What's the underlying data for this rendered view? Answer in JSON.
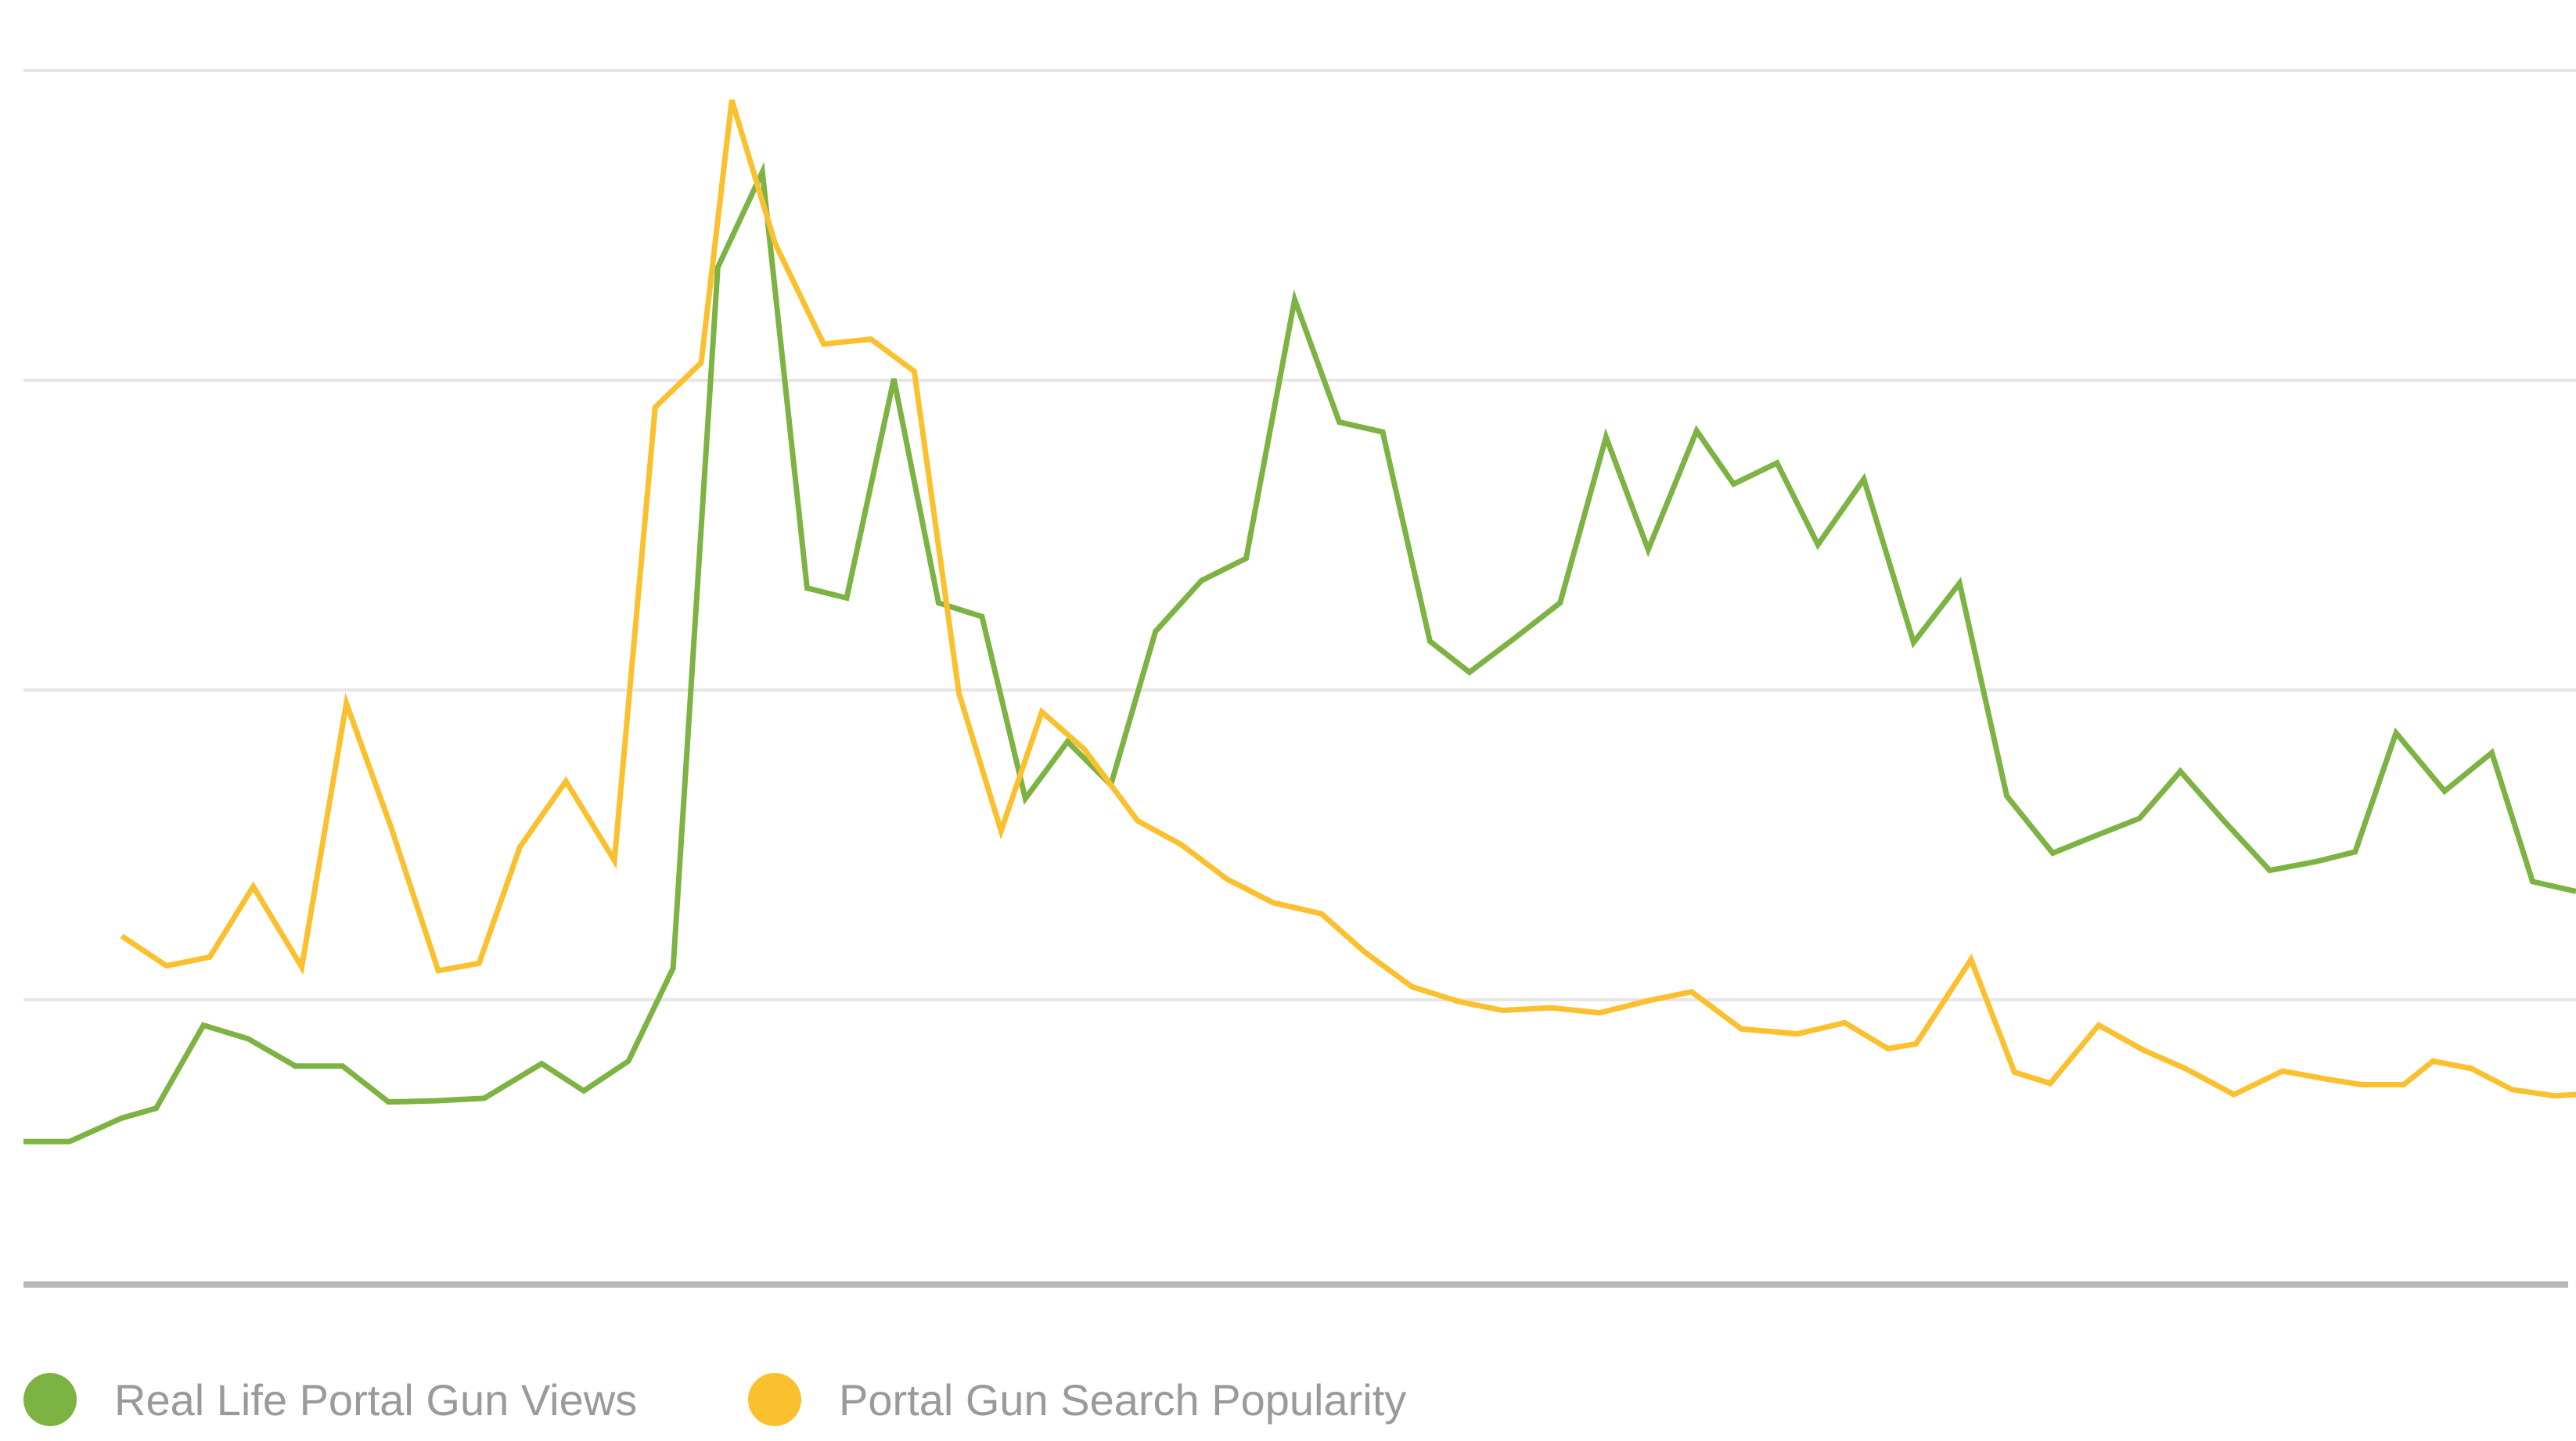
{
  "chart_data": {
    "type": "line",
    "title": "",
    "xlabel": "",
    "ylabel": "",
    "ylim": [
      0,
      100
    ],
    "grid": true,
    "legend_position": "bottom-left",
    "x": [
      0,
      1,
      2,
      3,
      4,
      5,
      6,
      7,
      8,
      9,
      10,
      11,
      12,
      13,
      14,
      15,
      16,
      17,
      18,
      19,
      20,
      21,
      22,
      23,
      24,
      25,
      26,
      27,
      28,
      29,
      30,
      31,
      32,
      33,
      34,
      35,
      36,
      37,
      38,
      39,
      40,
      41,
      42,
      43,
      44,
      45,
      46,
      47,
      48,
      49,
      50,
      51,
      52,
      53,
      54,
      55,
      56,
      57,
      58,
      59,
      60,
      61,
      62,
      63,
      64,
      65,
      66,
      67,
      68,
      69,
      70,
      71,
      72,
      73,
      74,
      75,
      76,
      77,
      78,
      79,
      80,
      81,
      82,
      83,
      84,
      85,
      86,
      87,
      88,
      89,
      90,
      91,
      92,
      93,
      94,
      95,
      96,
      97,
      98,
      99,
      100,
      101,
      102,
      103,
      104,
      105,
      106,
      107,
      108,
      109,
      110,
      111,
      112,
      113,
      114,
      115,
      116,
      117,
      118,
      119,
      120,
      121,
      122,
      123,
      124,
      125,
      126,
      127,
      128,
      129,
      130,
      131,
      132,
      133,
      134,
      135,
      136,
      137,
      138,
      139,
      140,
      141,
      142,
      143,
      144,
      145,
      146,
      147,
      148,
      149,
      150,
      151,
      152,
      153,
      154,
      155,
      156,
      157,
      158,
      159,
      160,
      161,
      162,
      163,
      164,
      165,
      166,
      167,
      168,
      169,
      170,
      171,
      172,
      173,
      174,
      175,
      176,
      177,
      178,
      179,
      180,
      181,
      182,
      183,
      184,
      185,
      186,
      187,
      188,
      189,
      190,
      191,
      192,
      193,
      194,
      195,
      196,
      197,
      198,
      199,
      200
    ],
    "series": [
      {
        "name": "Real Life Portal Gun Views",
        "color": "#7cb342",
        "points": [
          [
            0,
            13.5
          ],
          [
            3.6,
            13.5
          ],
          [
            7.7,
            15.4
          ],
          [
            10.4,
            16.2
          ],
          [
            14.1,
            22.9
          ],
          [
            17.6,
            21.8
          ],
          [
            21.3,
            19.6
          ],
          [
            25.0,
            19.6
          ],
          [
            28.6,
            16.7
          ],
          [
            32.3,
            16.8
          ],
          [
            36.1,
            17.0
          ],
          [
            40.6,
            19.8
          ],
          [
            43.9,
            17.6
          ],
          [
            47.4,
            20.0
          ],
          [
            50.9,
            27.5
          ],
          [
            54.4,
            84.1
          ],
          [
            57.9,
            91.8
          ],
          [
            61.4,
            58.2
          ],
          [
            64.5,
            57.4
          ],
          [
            68.2,
            75.1
          ],
          [
            71.7,
            57.0
          ],
          [
            75.1,
            55.9
          ],
          [
            78.5,
            41.2
          ],
          [
            81.8,
            45.8
          ],
          [
            85.2,
            42.3
          ],
          [
            88.7,
            54.7
          ],
          [
            92.3,
            58.8
          ],
          [
            95.8,
            60.6
          ],
          [
            99.6,
            81.5
          ],
          [
            103.1,
            71.6
          ],
          [
            106.5,
            70.8
          ],
          [
            110.2,
            53.9
          ],
          [
            113.3,
            51.4
          ],
          [
            116.9,
            54.2
          ],
          [
            120.4,
            57.0
          ],
          [
            124.0,
            70.4
          ],
          [
            127.3,
            61.3
          ],
          [
            131.1,
            70.9
          ],
          [
            134.0,
            66.6
          ],
          [
            137.4,
            68.3
          ],
          [
            140.6,
            61.7
          ],
          [
            144.2,
            67.0
          ],
          [
            148.1,
            53.8
          ],
          [
            151.7,
            58.6
          ],
          [
            155.4,
            41.4
          ],
          [
            159.0,
            36.8
          ],
          [
            162.6,
            38.3
          ],
          [
            165.8,
            39.6
          ],
          [
            169.0,
            43.4
          ],
          [
            172.5,
            39.3
          ],
          [
            176.0,
            35.4
          ],
          [
            179.6,
            36.1
          ],
          [
            182.7,
            36.9
          ],
          [
            185.9,
            46.5
          ],
          [
            189.7,
            41.8
          ],
          [
            193.4,
            44.9
          ],
          [
            196.6,
            34.5
          ],
          [
            200.0,
            33.7
          ]
        ]
      },
      {
        "name": "Portal Gun Search Popularity",
        "color": "#fbc02d",
        "points": [
          [
            7.7,
            30.1
          ],
          [
            11.2,
            27.7
          ],
          [
            14.6,
            28.4
          ],
          [
            18.0,
            34.1
          ],
          [
            21.8,
            27.6
          ],
          [
            25.3,
            48.9
          ],
          [
            28.8,
            38.9
          ],
          [
            32.5,
            27.3
          ],
          [
            35.7,
            27.9
          ],
          [
            38.9,
            37.3
          ],
          [
            42.5,
            42.6
          ],
          [
            46.3,
            36.2
          ],
          [
            49.5,
            72.8
          ],
          [
            53.1,
            76.4
          ],
          [
            55.5,
            97.6
          ],
          [
            58.9,
            86.0
          ],
          [
            62.7,
            77.9
          ],
          [
            66.4,
            78.3
          ],
          [
            69.8,
            75.7
          ],
          [
            73.3,
            49.7
          ],
          [
            76.6,
            38.6
          ],
          [
            79.8,
            48.2
          ],
          [
            83.1,
            45.2
          ],
          [
            87.3,
            39.4
          ],
          [
            90.7,
            37.5
          ],
          [
            94.3,
            34.7
          ],
          [
            97.9,
            32.8
          ],
          [
            101.7,
            31.9
          ],
          [
            105.1,
            28.8
          ],
          [
            108.8,
            26.0
          ],
          [
            112.5,
            24.8
          ],
          [
            115.9,
            24.1
          ],
          [
            119.7,
            24.3
          ],
          [
            123.5,
            23.9
          ],
          [
            127.4,
            24.9
          ],
          [
            130.7,
            25.6
          ],
          [
            134.6,
            22.6
          ],
          [
            139.0,
            22.2
          ],
          [
            142.7,
            23.1
          ],
          [
            146.1,
            21.0
          ],
          [
            148.3,
            21.4
          ],
          [
            152.6,
            28.2
          ],
          [
            156.0,
            19.1
          ],
          [
            158.8,
            18.2
          ],
          [
            162.6,
            22.9
          ],
          [
            166.1,
            20.9
          ],
          [
            169.4,
            19.4
          ],
          [
            173.2,
            17.3
          ],
          [
            177.0,
            19.2
          ],
          [
            180.7,
            18.5
          ],
          [
            183.2,
            18.1
          ],
          [
            186.5,
            18.1
          ],
          [
            188.8,
            20.0
          ],
          [
            191.8,
            19.4
          ],
          [
            195.0,
            17.7
          ],
          [
            198.3,
            17.2
          ],
          [
            200.0,
            17.3
          ],
          [
            202.0,
            18.0
          ]
        ]
      }
    ],
    "legend": [
      {
        "label": "Real Life Portal Gun Views",
        "color": "#7cb342"
      },
      {
        "label": "Portal Gun Search Popularity",
        "color": "#fbc02d"
      }
    ]
  }
}
